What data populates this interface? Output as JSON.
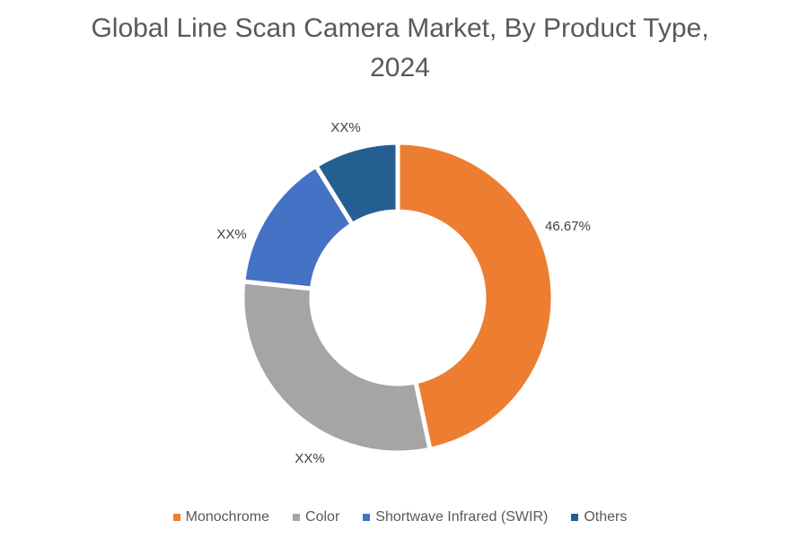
{
  "chart_data": {
    "type": "pie",
    "variant": "donut",
    "title_lines": [
      "Global Line Scan Camera Market, By Product Type,",
      "2024"
    ],
    "categories": [
      "Monochrome",
      "Color",
      "Shortwave Infrared (SWIR)",
      "Others"
    ],
    "values": [
      46.67,
      30.0,
      14.5,
      8.83
    ],
    "data_labels": [
      "46.67%",
      "XX%",
      "XX%",
      "XX%"
    ],
    "colors": [
      "#ED7D31",
      "#A5A5A5",
      "#4472C4",
      "#255E91"
    ],
    "legend_position": "bottom"
  }
}
